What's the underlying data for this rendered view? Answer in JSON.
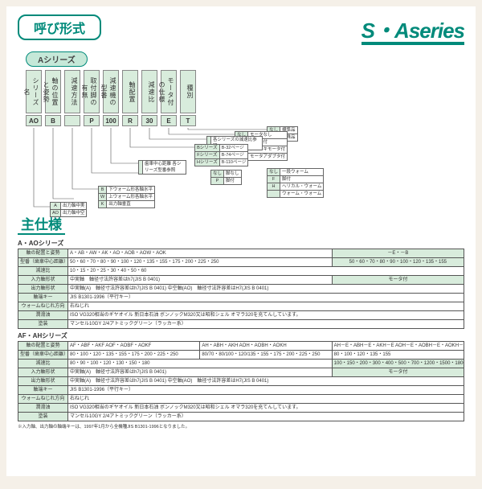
{
  "colors": {
    "accent": "#008a7a",
    "panel": "#d8ecdc",
    "bg": "#f5f0e8"
  },
  "header": {
    "title": "呼び形式",
    "brand_s": "S",
    "brand_dot": "・",
    "brand_a": "A",
    "brand_series": "series"
  },
  "subtitle": "Aシリーズ",
  "diagram": {
    "labels": [
      "シリーズ名",
      "軸の位置と姿勢",
      "減速方法",
      "取付脚の有無",
      "減速機の型番",
      "軸配置",
      "減速比",
      "モータ付の仕様",
      "種別"
    ],
    "codes": [
      "AO",
      "B",
      "",
      "P",
      "100",
      "R",
      "30",
      "E",
      "T"
    ],
    "legend_type": [
      [
        "なし",
        "標準品"
      ],
      [
        "T",
        "特殊品"
      ]
    ],
    "legend_motor": [
      [
        "なし",
        "モータなし"
      ],
      [
        "E",
        "モータ付"
      ],
      [
        "B",
        "ブレーキモータ付"
      ],
      [
        "N",
        "モータアダプタ付"
      ]
    ],
    "legend_ratio": [
      [
        "",
        "各シリーズの減速比参照"
      ]
    ],
    "legend_series": [
      [
        "Bシリーズ",
        "B-32ページ"
      ],
      [
        "Fシリーズ",
        "B-74ページ"
      ],
      [
        "Hシリーズ",
        "B-110ページ"
      ]
    ],
    "legend_axis": [
      [
        "なし",
        "一段ウォーム"
      ],
      [
        "F",
        "脚付"
      ],
      [
        "H",
        "ヘリカル・ウォーム"
      ],
      [
        "",
        "ウォーム・ウォーム"
      ]
    ],
    "legend_foot": [
      [
        "なし",
        "脚なし"
      ],
      [
        "P",
        "脚付"
      ]
    ],
    "legend_center": [
      [
        "",
        "歯車中心距離 各シリーズ型番参照"
      ]
    ],
    "legend_method": [
      [
        "B",
        "下ウォーム形各軸水平"
      ],
      [
        "W",
        "上ウォーム形各軸水平"
      ],
      [
        "K",
        "出力軸垂直"
      ]
    ],
    "legend_pos": [
      [
        "A",
        "出力軸中実"
      ],
      [
        "AO",
        "出力軸中空"
      ]
    ]
  },
  "spec_title": "主仕様",
  "specA": {
    "sub": "A・AOシリーズ",
    "rows": [
      [
        "軸の配置と姿勢",
        "A・AB・AW・AK・AO・AOB・AOW・AOK",
        "",
        "－E・－B"
      ],
      [
        "型番（歯車中心距離）",
        "50・60・70・80・90・100・120・135・155・175・200・225・250",
        "",
        "50・60・70・80・90・100・120・135・155"
      ],
      [
        "減速比",
        "10・15・20・25・30・40・50・60",
        "",
        ""
      ],
      [
        "入力軸形状",
        "中実軸　軸径寸法許容差はh7(JIS B 0401)",
        "",
        "モータ付"
      ],
      [
        "出力軸形状",
        "中実軸(A)　軸径寸法許容差はh7(JIS B 0401)\n中空軸(AO)　軸径寸法許容差はH7(JIS B 0401)",
        "",
        ""
      ],
      [
        "軸端キー",
        "JIS B1301-1996（平行キー）",
        "",
        ""
      ],
      [
        "ウォームねじれ方向",
        "右ねじれ",
        "",
        ""
      ],
      [
        "潤滑油",
        "ISO VG320相当のギヤオイル\n新日本石油 ボンノックM320又は昭和シェル オマラ320を充てんしています。",
        "",
        ""
      ],
      [
        "塗装",
        "マンセル10GY 2/4アトミックグリーン（ラッカー系）",
        "",
        ""
      ]
    ]
  },
  "specAF": {
    "sub": "AF・AHシリーズ",
    "rows": [
      [
        "軸の配置と姿勢",
        "AF・ABF・AKF\nAOF・AOBF・AOKF",
        "AH・ABH・AKH\nAOH・AOBH・AOKH",
        "AH－E・ABH－E・AKH－E\nAOH－E・AOBH－E・AOKH－E"
      ],
      [
        "型番（歯車中心距離）",
        "80・100・120・135・155・175・200・225・250",
        "80/70・80/100・120/135・155・175・200・225・250",
        "80・100・120・135・155"
      ],
      [
        "減速比",
        "80・90・100・120・130・150・180",
        "100・150・200・300・400・500・700・1200・1500・1800・2000・2500・3000・3600",
        "",
        ""
      ],
      [
        "入力軸形状",
        "中実軸(A)　軸径寸法許容差はh7(JIS B 0401)",
        "",
        "モータ付"
      ],
      [
        "出力軸形状",
        "中実軸(A)　軸径寸法許容差はh7(JIS B 0401)\n中空軸(AO)　軸径寸法許容差はH7(JIS B 0401)",
        "",
        ""
      ],
      [
        "軸端キー",
        "JIS B1301-1996（平行キー）",
        "",
        ""
      ],
      [
        "ウォームねじれ方向",
        "右ねじれ",
        "",
        ""
      ],
      [
        "潤滑油",
        "ISO VG320相当のギヤオイル\n新日本石油 ボンノックM320又は昭和シェル オマラ320を充てんしています。",
        "",
        ""
      ],
      [
        "塗装",
        "マンセル10GY 2/4アトミックグリーン（ラッカー系）",
        "",
        ""
      ]
    ]
  },
  "footnote": "※入力軸、出力軸の軸端キーは、1997年1月から全機種JIS B1301-1996となりました。"
}
